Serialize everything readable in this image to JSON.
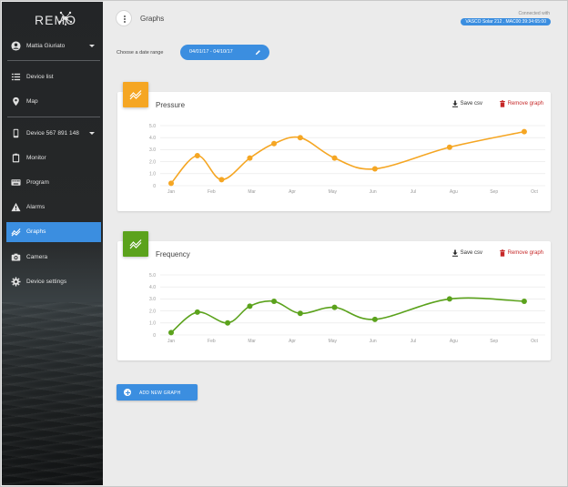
{
  "app": {
    "logo": "REMO"
  },
  "sidebar": {
    "user": "Mattia Giuriato",
    "items": [
      {
        "label": "Device list",
        "icon": "list-icon"
      },
      {
        "label": "Map",
        "icon": "map-pin-icon"
      },
      {
        "label": "Device 567 891 148",
        "icon": "phone-icon"
      },
      {
        "label": "Monitor",
        "icon": "clipboard-icon"
      },
      {
        "label": "Program",
        "icon": "keyboard-icon"
      },
      {
        "label": "Alarms",
        "icon": "warning-icon"
      },
      {
        "label": "Graphs",
        "icon": "chart-line-icon",
        "active": true
      },
      {
        "label": "Camera",
        "icon": "camera-icon"
      },
      {
        "label": "Device settings",
        "icon": "gear-icon"
      }
    ]
  },
  "header": {
    "title": "Graphs",
    "connected_label": "Connected with",
    "connected_device": "VASCO Solar 212 . MAC00:39:34:65:00"
  },
  "date_range": {
    "label": "Choose a date range",
    "value": "04/01/17 - 04/10/17"
  },
  "actions": {
    "save": "Save csv",
    "remove": "Remove graph",
    "add": "ADD NEW GRAPH"
  },
  "colors": {
    "accent": "#3b8ee0",
    "pressure": "#f5a623",
    "frequency": "#5ba21c",
    "danger": "#c62828"
  },
  "chart_data": [
    {
      "type": "line",
      "title": "Pressure",
      "x": [
        "Jan",
        "Feb",
        "Mar",
        "Apr",
        "May",
        "Jun",
        "Jul",
        "Agu",
        "Sep",
        "Oct"
      ],
      "y_ticks": [
        "0",
        "1.0",
        "2.0",
        "3.0",
        "4.0",
        "5.0"
      ],
      "ylim": [
        0,
        5
      ],
      "series": [
        {
          "color": "#f5a623",
          "points": [
            [
              0.0,
              0.2
            ],
            [
              0.65,
              2.5
            ],
            [
              1.25,
              0.5
            ],
            [
              1.95,
              2.3
            ],
            [
              2.55,
              3.5
            ],
            [
              3.2,
              4.0
            ],
            [
              4.05,
              2.3
            ],
            [
              5.05,
              1.4
            ],
            [
              6.9,
              3.2
            ],
            [
              8.75,
              4.5
            ]
          ]
        }
      ],
      "grid": true
    },
    {
      "type": "line",
      "title": "Frequency",
      "x": [
        "Jan",
        "Feb",
        "Mar",
        "Apr",
        "May",
        "Jun",
        "Jul",
        "Agu",
        "Sep",
        "Oct"
      ],
      "y_ticks": [
        "0",
        "1.0",
        "2.0",
        "3.0",
        "4.0",
        "5.0"
      ],
      "ylim": [
        0,
        5
      ],
      "series": [
        {
          "color": "#5ba21c",
          "points": [
            [
              0.0,
              0.2
            ],
            [
              0.65,
              1.9
            ],
            [
              1.4,
              1.0
            ],
            [
              1.95,
              2.4
            ],
            [
              2.55,
              2.8
            ],
            [
              3.2,
              1.8
            ],
            [
              4.05,
              2.3
            ],
            [
              5.05,
              1.3
            ],
            [
              6.9,
              3.0
            ],
            [
              8.75,
              2.8
            ]
          ]
        }
      ],
      "grid": true
    }
  ]
}
